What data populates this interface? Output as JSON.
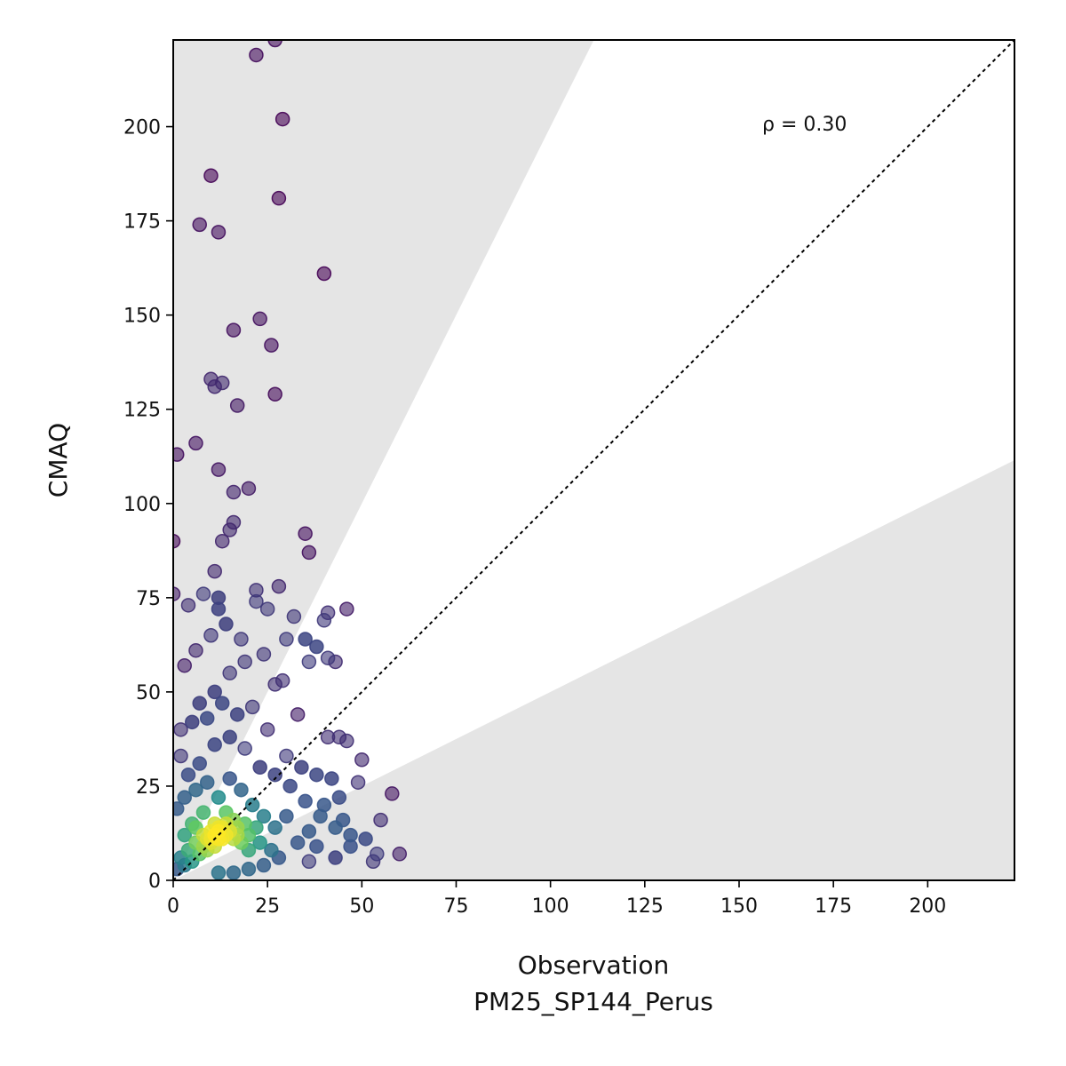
{
  "chart_data": {
    "type": "scatter",
    "title": "",
    "xlabel": "Observation",
    "xlabel_sub": "PM25_SP144_Perus",
    "ylabel": "CMAQ",
    "xlim": [
      0,
      223
    ],
    "ylim": [
      0,
      223
    ],
    "xticks": [
      0,
      25,
      50,
      75,
      100,
      125,
      150,
      175,
      200
    ],
    "yticks": [
      0,
      25,
      50,
      75,
      100,
      125,
      150,
      175,
      200
    ],
    "grid": false,
    "annotation": "ρ = 0.30",
    "one_to_one_line": true,
    "factor_of_two_band": true,
    "colormap": "viridis (point density)",
    "colors": {
      "band": "#e5e5e5",
      "low_density": "#440154",
      "high_density": "#fde725"
    },
    "points": [
      [
        27,
        223
      ],
      [
        22,
        219
      ],
      [
        29,
        202
      ],
      [
        28,
        181
      ],
      [
        10,
        187
      ],
      [
        7,
        174
      ],
      [
        12,
        172
      ],
      [
        40,
        161
      ],
      [
        23,
        149
      ],
      [
        26,
        142
      ],
      [
        16,
        146
      ],
      [
        10,
        133
      ],
      [
        13,
        132
      ],
      [
        11,
        131
      ],
      [
        27,
        129
      ],
      [
        17,
        126
      ],
      [
        6,
        116
      ],
      [
        1,
        113
      ],
      [
        12,
        109
      ],
      [
        20,
        104
      ],
      [
        16,
        103
      ],
      [
        16,
        95
      ],
      [
        15,
        93
      ],
      [
        13,
        90
      ],
      [
        35,
        92
      ],
      [
        36,
        87
      ],
      [
        0,
        90
      ],
      [
        11,
        82
      ],
      [
        0,
        76
      ],
      [
        4,
        73
      ],
      [
        8,
        76
      ],
      [
        12,
        75
      ],
      [
        12,
        72
      ],
      [
        28,
        78
      ],
      [
        22,
        77
      ],
      [
        22,
        74
      ],
      [
        25,
        72
      ],
      [
        32,
        70
      ],
      [
        41,
        71
      ],
      [
        46,
        72
      ],
      [
        40,
        69
      ],
      [
        41,
        59
      ],
      [
        43,
        58
      ],
      [
        38,
        62
      ],
      [
        36,
        58
      ],
      [
        35,
        64
      ],
      [
        30,
        64
      ],
      [
        29,
        53
      ],
      [
        27,
        52
      ],
      [
        33,
        44
      ],
      [
        41,
        38
      ],
      [
        44,
        38
      ],
      [
        46,
        37
      ],
      [
        50,
        32
      ],
      [
        49,
        26
      ],
      [
        45,
        16
      ],
      [
        55,
        16
      ],
      [
        58,
        23
      ],
      [
        54,
        7
      ],
      [
        60,
        7
      ],
      [
        53,
        5
      ],
      [
        47,
        9
      ],
      [
        43,
        6
      ],
      [
        38,
        9
      ],
      [
        36,
        13
      ],
      [
        40,
        20
      ],
      [
        44,
        22
      ],
      [
        3,
        57
      ],
      [
        6,
        61
      ],
      [
        10,
        65
      ],
      [
        14,
        68
      ],
      [
        18,
        64
      ],
      [
        7,
        47
      ],
      [
        11,
        50
      ],
      [
        15,
        55
      ],
      [
        19,
        58
      ],
      [
        24,
        60
      ],
      [
        2,
        40
      ],
      [
        5,
        42
      ],
      [
        9,
        43
      ],
      [
        13,
        47
      ],
      [
        17,
        44
      ],
      [
        21,
        46
      ],
      [
        25,
        40
      ],
      [
        30,
        33
      ],
      [
        34,
        30
      ],
      [
        38,
        28
      ],
      [
        42,
        27
      ],
      [
        2,
        33
      ],
      [
        4,
        28
      ],
      [
        7,
        31
      ],
      [
        11,
        36
      ],
      [
        15,
        38
      ],
      [
        19,
        35
      ],
      [
        23,
        30
      ],
      [
        27,
        28
      ],
      [
        31,
        25
      ],
      [
        35,
        21
      ],
      [
        39,
        17
      ],
      [
        43,
        14
      ],
      [
        47,
        12
      ],
      [
        51,
        11
      ],
      [
        30,
        17
      ],
      [
        33,
        10
      ],
      [
        28,
        6
      ],
      [
        24,
        4
      ],
      [
        20,
        3
      ],
      [
        16,
        2
      ],
      [
        12,
        2
      ],
      [
        36,
        5
      ],
      [
        1,
        19
      ],
      [
        3,
        22
      ],
      [
        6,
        24
      ],
      [
        9,
        26
      ],
      [
        12,
        22
      ],
      [
        15,
        27
      ],
      [
        18,
        24
      ],
      [
        21,
        20
      ],
      [
        24,
        17
      ],
      [
        27,
        14
      ],
      [
        3,
        12
      ],
      [
        5,
        15
      ],
      [
        8,
        18
      ],
      [
        11,
        15
      ],
      [
        14,
        18
      ],
      [
        17,
        14
      ],
      [
        20,
        12
      ],
      [
        23,
        10
      ],
      [
        26,
        8
      ],
      [
        2,
        6
      ],
      [
        4,
        8
      ],
      [
        6,
        10
      ],
      [
        8,
        12
      ],
      [
        10,
        10
      ],
      [
        12,
        14
      ],
      [
        14,
        12
      ],
      [
        16,
        16
      ],
      [
        18,
        10
      ],
      [
        20,
        8
      ],
      [
        22,
        14
      ],
      [
        1,
        3
      ],
      [
        3,
        4
      ],
      [
        5,
        5
      ],
      [
        7,
        7
      ],
      [
        9,
        8
      ],
      [
        11,
        9
      ],
      [
        13,
        11
      ],
      [
        15,
        13
      ],
      [
        17,
        12
      ],
      [
        19,
        15
      ],
      [
        6,
        14
      ],
      [
        8,
        9
      ],
      [
        10,
        13
      ],
      [
        12,
        11
      ],
      [
        14,
        15
      ],
      [
        16,
        11
      ],
      [
        9,
        11
      ],
      [
        11,
        12
      ],
      [
        13,
        14
      ],
      [
        12,
        13
      ],
      [
        10,
        11
      ]
    ]
  }
}
